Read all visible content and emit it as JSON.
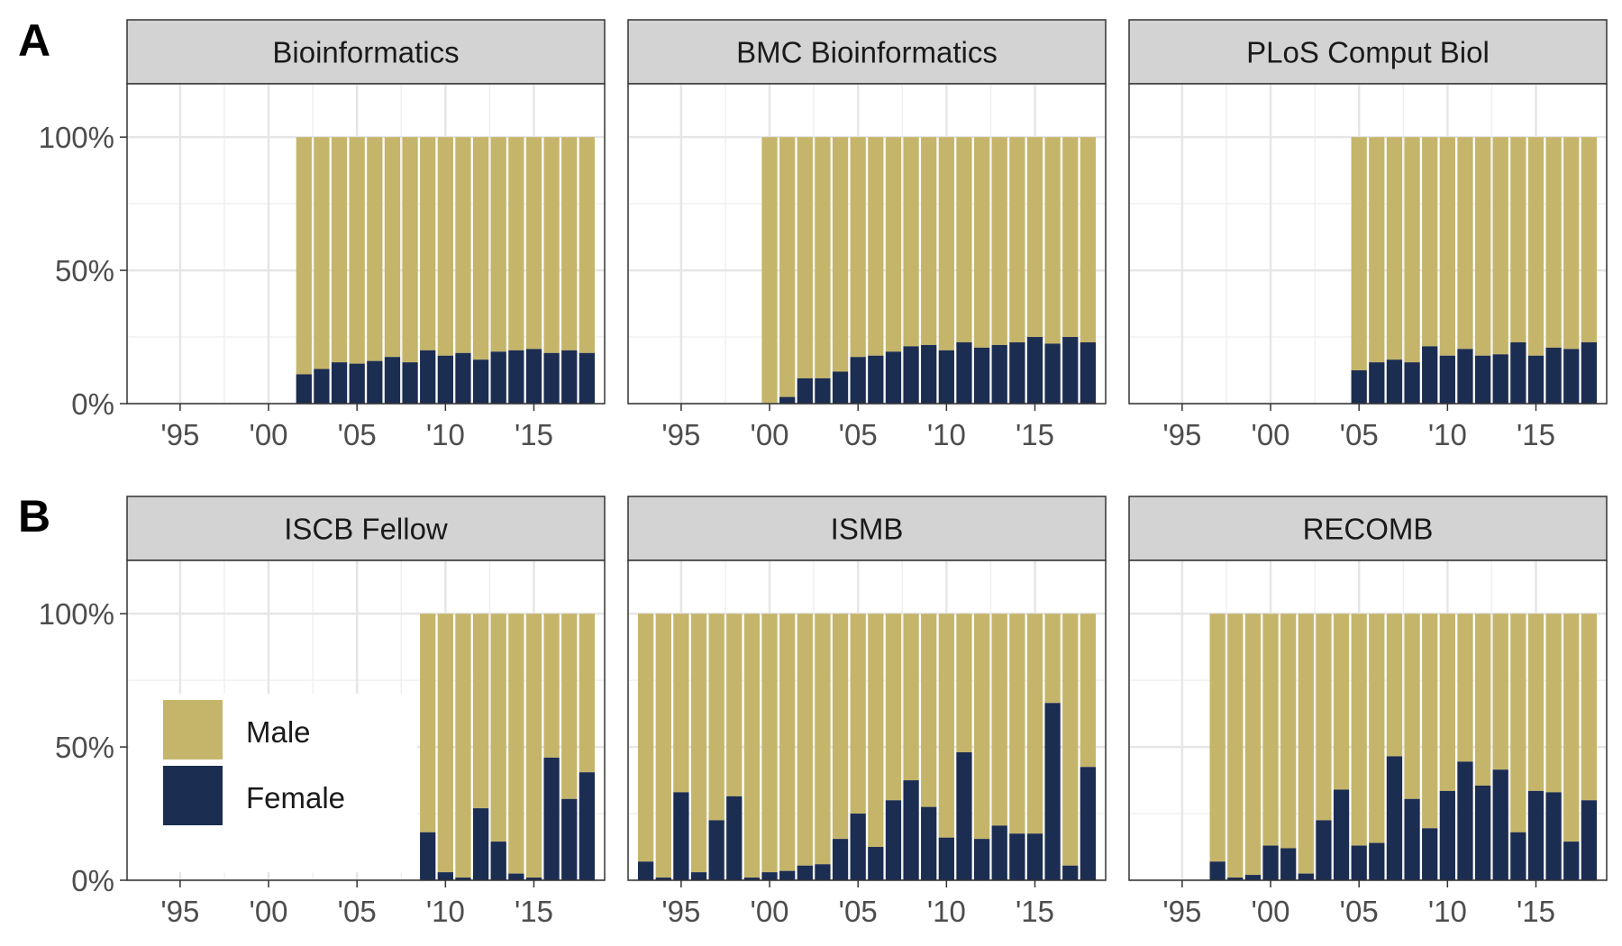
{
  "chart_data": {
    "type": "bar",
    "stacked": true,
    "percent": true,
    "x_ticks": [
      "'95",
      "'00",
      "'05",
      "'10",
      "'15"
    ],
    "x_tick_years": [
      1995,
      2000,
      2005,
      2010,
      2015
    ],
    "xlim": [
      1992,
      2019
    ],
    "y_ticks": [
      "0%",
      "50%",
      "100%"
    ],
    "ylim": [
      0,
      1.2
    ],
    "grid": true,
    "colors": {
      "Male": "#C5B56A",
      "Female": "#1C2D52"
    },
    "legend": {
      "position": "bottom-left of panel B1",
      "entries": [
        "Male",
        "Female"
      ]
    },
    "panel_labels": [
      "A",
      "B"
    ],
    "panels": [
      {
        "row": "A",
        "title": "Bioinformatics",
        "years": [
          2002,
          2003,
          2004,
          2005,
          2006,
          2007,
          2008,
          2009,
          2010,
          2011,
          2012,
          2013,
          2014,
          2015,
          2016,
          2017,
          2018
        ],
        "female": [
          0.11,
          0.13,
          0.155,
          0.15,
          0.16,
          0.175,
          0.155,
          0.2,
          0.18,
          0.19,
          0.165,
          0.195,
          0.2,
          0.205,
          0.19,
          0.2,
          0.19
        ]
      },
      {
        "row": "A",
        "title": "BMC Bioinformatics",
        "years": [
          2000,
          2001,
          2002,
          2003,
          2004,
          2005,
          2006,
          2007,
          2008,
          2009,
          2010,
          2011,
          2012,
          2013,
          2014,
          2015,
          2016,
          2017,
          2018
        ],
        "female": [
          0.0,
          0.025,
          0.095,
          0.095,
          0.12,
          0.175,
          0.18,
          0.195,
          0.215,
          0.22,
          0.2,
          0.23,
          0.21,
          0.22,
          0.23,
          0.25,
          0.225,
          0.25,
          0.23
        ]
      },
      {
        "row": "A",
        "title": "PLoS Comput Biol",
        "years": [
          2005,
          2006,
          2007,
          2008,
          2009,
          2010,
          2011,
          2012,
          2013,
          2014,
          2015,
          2016,
          2017,
          2018
        ],
        "female": [
          0.125,
          0.155,
          0.165,
          0.155,
          0.215,
          0.18,
          0.205,
          0.18,
          0.185,
          0.23,
          0.18,
          0.21,
          0.205,
          0.23
        ]
      },
      {
        "row": "B",
        "title": "ISCB Fellow",
        "years": [
          2009,
          2010,
          2011,
          2012,
          2013,
          2014,
          2015,
          2016,
          2017,
          2018
        ],
        "female": [
          0.18,
          0.03,
          0.01,
          0.27,
          0.145,
          0.025,
          0.01,
          0.46,
          0.305,
          0.405
        ]
      },
      {
        "row": "B",
        "title": "ISMB",
        "years": [
          1993,
          1994,
          1995,
          1996,
          1997,
          1998,
          1999,
          2000,
          2001,
          2002,
          2003,
          2004,
          2005,
          2006,
          2007,
          2008,
          2009,
          2010,
          2011,
          2012,
          2013,
          2014,
          2015,
          2016,
          2017,
          2018
        ],
        "female": [
          0.07,
          0.01,
          0.33,
          0.03,
          0.225,
          0.315,
          0.01,
          0.03,
          0.035,
          0.055,
          0.06,
          0.155,
          0.25,
          0.125,
          0.3,
          0.375,
          0.275,
          0.16,
          0.48,
          0.155,
          0.205,
          0.175,
          0.175,
          0.665,
          0.055,
          0.425
        ]
      },
      {
        "row": "B",
        "title": "RECOMB",
        "years": [
          1997,
          1998,
          1999,
          2000,
          2001,
          2002,
          2003,
          2004,
          2005,
          2006,
          2007,
          2008,
          2009,
          2010,
          2011,
          2012,
          2013,
          2014,
          2015,
          2016,
          2017,
          2018
        ],
        "female": [
          0.07,
          0.01,
          0.02,
          0.13,
          0.12,
          0.025,
          0.225,
          0.34,
          0.13,
          0.14,
          0.465,
          0.305,
          0.195,
          0.335,
          0.445,
          0.355,
          0.415,
          0.18,
          0.335,
          0.33,
          0.145,
          0.3
        ]
      }
    ]
  }
}
